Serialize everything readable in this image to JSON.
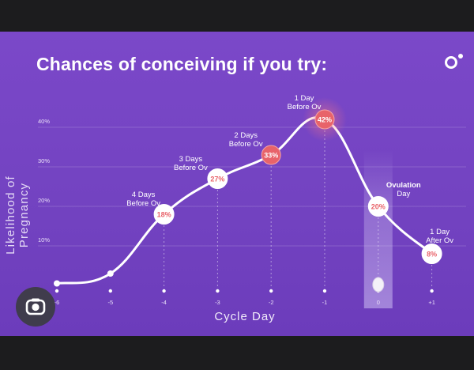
{
  "header": {
    "title": "Chances of conceiving if you try:",
    "logo_icon": "brand-logo-icon"
  },
  "lens_button": {
    "icon": "camera-lens-icon"
  },
  "colors": {
    "background": "#7648c4",
    "accent": "#e8636a",
    "line": "#ffffff",
    "highlight_band": "#a78bd8"
  },
  "chart_data": {
    "type": "line",
    "title": "Chances of conceiving if you try:",
    "xlabel": "Cycle Day",
    "ylabel": "Likelihood of Pregnancy",
    "ylim": [
      0,
      45
    ],
    "yticks": [
      "10%",
      "20%",
      "30%",
      "40%"
    ],
    "ytick_values": [
      10,
      20,
      30,
      40
    ],
    "grid": true,
    "x": [
      "-6",
      "-5",
      "-4",
      "-3",
      "-2",
      "-1",
      "0",
      "+1"
    ],
    "xtick_labels": [
      "-6",
      "-5",
      "-4",
      "-3",
      "-2",
      "-1",
      "0",
      "+1"
    ],
    "values": [
      0.5,
      3,
      18,
      27,
      33,
      42,
      20,
      8
    ],
    "data_labels": [
      "",
      "",
      "18%",
      "27%",
      "33%",
      "42%",
      "20%",
      "8%"
    ],
    "annotations": [
      {
        "x": "-4",
        "line1": "4 Days",
        "line2": "Before Ov"
      },
      {
        "x": "-3",
        "line1": "3 Days",
        "line2": "Before Ov"
      },
      {
        "x": "-2",
        "line1": "2 Days",
        "line2": "Before Ov"
      },
      {
        "x": "-1",
        "line1": "1 Day",
        "line2": "Before Ov"
      },
      {
        "x": "0",
        "line1": "Ovulation",
        "line2": "Day"
      },
      {
        "x": "+1",
        "line1": "1 Day",
        "line2": "After Ov"
      }
    ],
    "highlight": "0"
  }
}
